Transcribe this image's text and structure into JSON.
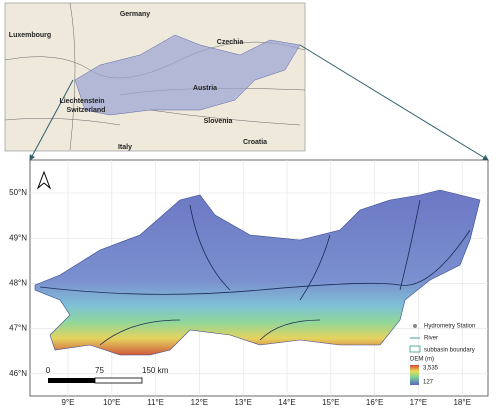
{
  "inset": {
    "labels": [
      "Germany",
      "Luxembourg",
      "Czechia",
      "Austria",
      "Liechtenstein",
      "Switzerland",
      "Slovenia",
      "Italy",
      "Croatia"
    ]
  },
  "map": {
    "lat_ticks": [
      "50°N",
      "49°N",
      "48°N",
      "47°N",
      "46°N"
    ],
    "lon_ticks": [
      "9°E",
      "10°E",
      "11°E",
      "12°E",
      "13°E",
      "14°E",
      "15°E",
      "16°E",
      "17°E",
      "18°E"
    ],
    "scale_bar": [
      "0",
      "75",
      "150 km"
    ]
  },
  "legend": {
    "items": [
      "Hydrometry Station",
      "River",
      "subbasin boundary"
    ],
    "dem_title": "DEM (m)",
    "dem_max": "3,535",
    "dem_min": "127"
  }
}
